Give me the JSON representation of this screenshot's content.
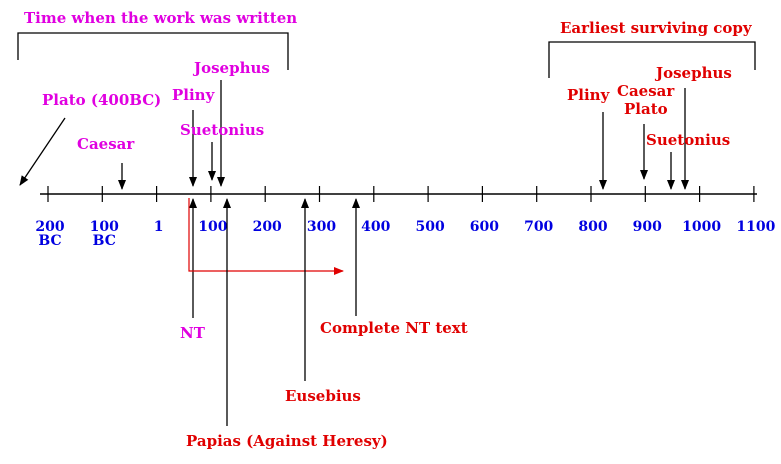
{
  "header_written": "Time when the work was written",
  "header_copy": "Earliest surviving copy",
  "ticks": [
    {
      "line1": "200",
      "line2": "BC"
    },
    {
      "line1": "100",
      "line2": "BC"
    },
    {
      "line1": "1",
      "line2": ""
    },
    {
      "line1": "100",
      "line2": ""
    },
    {
      "line1": "200",
      "line2": ""
    },
    {
      "line1": "300",
      "line2": ""
    },
    {
      "line1": "400",
      "line2": ""
    },
    {
      "line1": "500",
      "line2": ""
    },
    {
      "line1": "600",
      "line2": ""
    },
    {
      "line1": "700",
      "line2": ""
    },
    {
      "line1": "800",
      "line2": ""
    },
    {
      "line1": "900",
      "line2": ""
    },
    {
      "line1": "1000",
      "line2": ""
    },
    {
      "line1": "1100",
      "line2": ""
    }
  ],
  "written_labels": {
    "plato": "Plato (400BC)",
    "caesar": "Caesar",
    "pliny": "Pliny",
    "josephus": "Josephus",
    "suetonius": "Suetonius",
    "nt": "NT"
  },
  "copy_labels": {
    "pliny": "Pliny",
    "caesar": "Caesar",
    "plato": "Plato",
    "josephus": "Josephus",
    "suetonius": "Suetonius"
  },
  "other_labels": {
    "complete_nt": "Complete NT text",
    "eusebius": "Eusebius",
    "papias": "Papias (Against Heresy)"
  },
  "colors": {
    "written": "#e000e0",
    "copy": "#e00000",
    "axis_labels": "#0000e0",
    "lines": "#000000"
  }
}
